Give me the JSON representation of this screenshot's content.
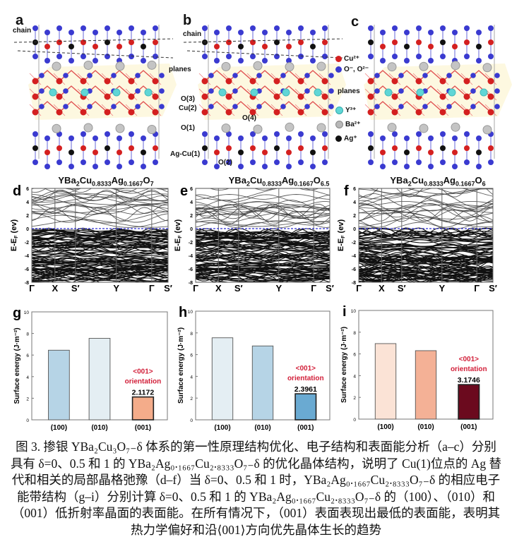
{
  "structure_panels": [
    {
      "letter": "a",
      "labels": {
        "chain": "chain"
      }
    },
    {
      "letter": "b",
      "labels": {
        "chain": "chain",
        "planes": "planes",
        "o3": "O(3)",
        "cu2": "Cu(2)",
        "o1": "O(1)",
        "agcu1": "Ag-Cu(1)",
        "o2": "O(2)",
        "o4": "O(4)"
      }
    },
    {
      "letter": "c",
      "labels": {
        "planes": "planes"
      }
    }
  ],
  "legend": [
    {
      "label": "Cu²⁺",
      "color": "#d42020"
    },
    {
      "label": "O⁻, O²⁻",
      "color": "#3a3ad0"
    },
    {
      "label": "Y³⁺",
      "color": "#5fd6d6"
    },
    {
      "label": "Ba²⁺",
      "color": "#b8b8b8"
    },
    {
      "label": "Ag⁺",
      "color": "#111111"
    }
  ],
  "formulas": [
    {
      "base": "YBa",
      "s1": "2",
      "mid1": "Cu",
      "s2": "0.8333",
      "mid2": "Ag",
      "s3": "0.1667",
      "mid3": "O",
      "s4": "7"
    },
    {
      "base": "YBa",
      "s1": "2",
      "mid1": "Cu",
      "s2": "0.8333",
      "mid2": "Ag",
      "s3": "0.1667",
      "mid3": "O",
      "s4": "6.5"
    },
    {
      "base": "YBa",
      "s1": "2",
      "mid1": "Cu",
      "s2": "0.8333",
      "mid2": "Ag",
      "s3": "0.1667",
      "mid3": "O",
      "s4": "6"
    }
  ],
  "chart_data": [
    {
      "panel": "d",
      "type": "line",
      "title": "YBa2Cu0.8333Ag0.1667O7",
      "ylabel": "E-EF (ev)",
      "ylim": [
        -8,
        6
      ],
      "yticks": [
        -8,
        -6,
        -4,
        -2,
        0,
        2,
        4,
        6
      ],
      "xticks": [
        "Γ",
        "X",
        "S′",
        "Y",
        "Γ",
        "S′"
      ],
      "fermi_level": 0,
      "fermi_color": "#2f2fd0"
    },
    {
      "panel": "e",
      "type": "line",
      "title": "YBa2Cu0.8333Ag0.1667O6.5",
      "ylabel": "E-EF (ev)",
      "ylim": [
        -8,
        6
      ],
      "yticks": [
        -8,
        -6,
        -4,
        -2,
        0,
        2,
        4,
        6
      ],
      "xticks": [
        "Γ",
        "X",
        "S′",
        "Y",
        "Γ",
        "S′"
      ],
      "fermi_level": 0,
      "fermi_color": "#2f2fd0"
    },
    {
      "panel": "f",
      "type": "line",
      "title": "YBa2Cu0.8333Ag0.1667O6",
      "ylabel": "E-EF (ev)",
      "ylim": [
        -8,
        6
      ],
      "yticks": [
        -8,
        -6,
        -4,
        -2,
        0,
        2,
        4,
        6
      ],
      "xticks": [
        "Γ",
        "X",
        "S′",
        "Y",
        "Γ",
        "S′"
      ],
      "fermi_level": 0,
      "fermi_color": "#2f2fd0"
    },
    {
      "panel": "g",
      "type": "bar",
      "categories": [
        "(100)",
        "(010)",
        "(001)"
      ],
      "values": [
        6.45,
        7.55,
        2.1172
      ],
      "colors": [
        "#b6d4e6",
        "#e4eef3",
        "#f4ac8a"
      ],
      "value_label": "2.1172",
      "annotation": [
        "<001>",
        "orientation"
      ],
      "ylabel": "Surface energy (J·m⁻²)",
      "ylim": [
        0,
        10
      ],
      "yticks": [
        0,
        2,
        4,
        6,
        8,
        10
      ]
    },
    {
      "panel": "h",
      "type": "bar",
      "categories": [
        "(100)",
        "(010)",
        "(001)"
      ],
      "values": [
        7.55,
        6.8,
        2.3961
      ],
      "colors": [
        "#e4eef3",
        "#b6d4e6",
        "#6aaad2"
      ],
      "value_label": "2.3961",
      "annotation": [
        "<001>",
        "orientation"
      ],
      "ylabel": "Surface energy (J·m⁻²)",
      "ylim": [
        0,
        10
      ],
      "yticks": [
        0,
        2,
        4,
        6,
        8,
        10
      ]
    },
    {
      "panel": "i",
      "type": "bar",
      "categories": [
        "(100)",
        "(010)",
        "(001)"
      ],
      "values": [
        6.95,
        6.3,
        3.1746
      ],
      "colors": [
        "#fbe3d6",
        "#f4b196",
        "#6b0a1e"
      ],
      "value_label": "3.1746",
      "annotation": [
        "<001>",
        "orientation"
      ],
      "ylabel": "Surface energy (J·m⁻²)",
      "ylim": [
        0,
        10
      ],
      "yticks": [
        0,
        2,
        4,
        6,
        8,
        10
      ]
    }
  ],
  "annotation_color": "#d2203a",
  "caption": {
    "lines": [
      "图 3. 掺银 YBa₂Cu₃O₇₋δ 体系的第一性原理结构优化、电子结构和表面能分析（a–c）分别",
      "具有 δ=0、0.5 和 1 的 YBa₂Ag₀.₁₆₆₇Cu₂.₈₃₃₃O₇₋δ 的优化晶体结构，说明了 Cu(1)位点的 Ag 替",
      "代和相关的局部晶格弛豫（d–f）当 δ=0、0.5 和 1 时，YBa₂Ag₀.₁₆₆₇Cu₂.₈₃₃₃O₇₋δ 的相应电子",
      "能带结构（g–i）分别计算 δ=0、0.5 和 1 的 YBa₂Ag₀.₁₆₆₇Cu₂.₈₃₃₃O₇₋δ 的（100）、（010）和",
      "（001）低折射率晶面的表面能。在所有情况下，（001）表面表现出最低的表面能，表明其",
      "热力学偏好和沿⟨001⟩方向优先晶体生长的趋势"
    ]
  }
}
